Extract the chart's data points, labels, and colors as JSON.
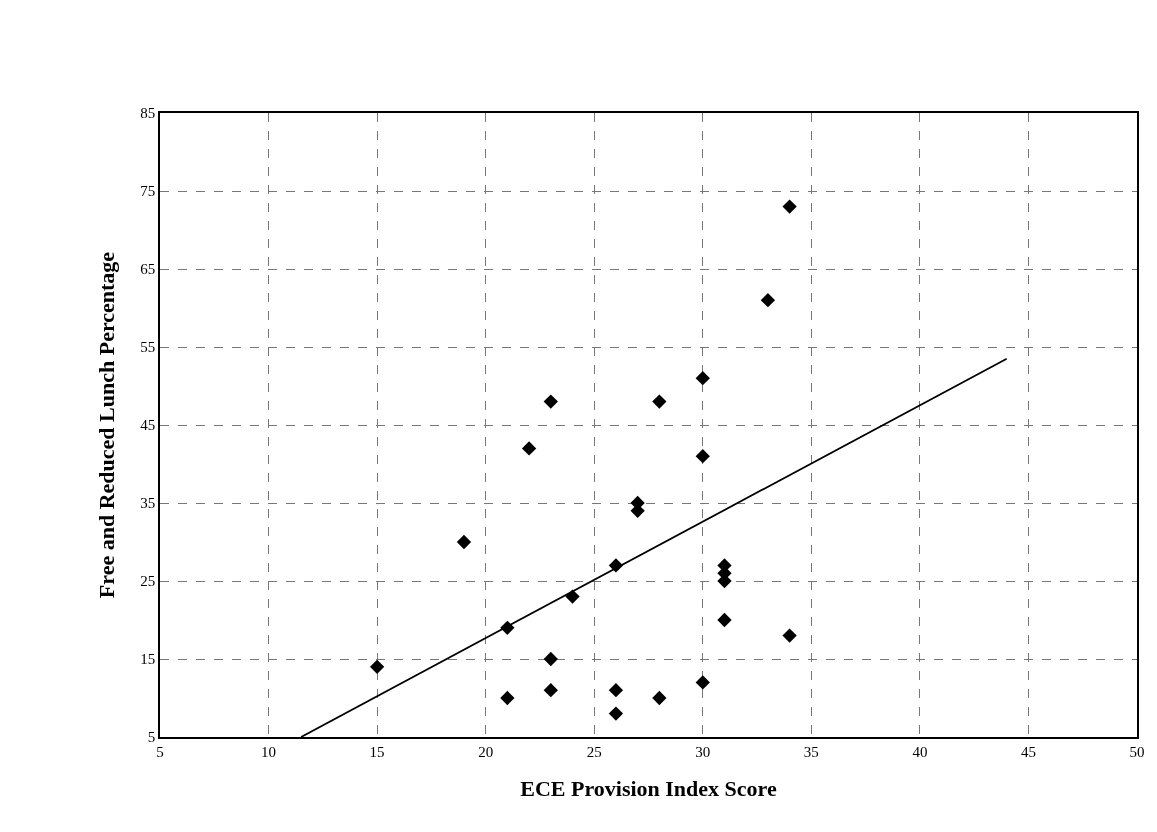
{
  "chart_data": {
    "type": "scatter",
    "xlabel": "ECE Provision Index Score",
    "ylabel": "Free and Reduced Lunch Percentage",
    "xlim": [
      5,
      50
    ],
    "xticks": [
      5,
      10,
      15,
      20,
      25,
      30,
      35,
      40,
      45,
      50
    ],
    "ylim": [
      5,
      85
    ],
    "yticks": [
      5,
      15,
      25,
      35,
      45,
      55,
      65,
      75,
      85
    ],
    "grid": true,
    "series": [
      {
        "color": "#000000",
        "marker": "diamond",
        "x": [
          15,
          19,
          21,
          21,
          22,
          23,
          23,
          23,
          24,
          26,
          26,
          26,
          27,
          27,
          28,
          28,
          30,
          30,
          30,
          31,
          31,
          31,
          31,
          33,
          34,
          34
        ],
        "values": [
          14,
          30,
          19,
          10,
          42,
          48,
          15,
          11,
          23,
          27,
          11,
          8,
          35,
          34,
          48,
          10,
          51,
          41,
          12,
          27,
          26,
          25,
          20,
          61,
          73,
          18
        ]
      },
      {
        "type": "line",
        "color": "#000000",
        "line_style": "solid",
        "x": [
          11.5,
          44
        ],
        "values": [
          5,
          53.5
        ]
      }
    ]
  }
}
